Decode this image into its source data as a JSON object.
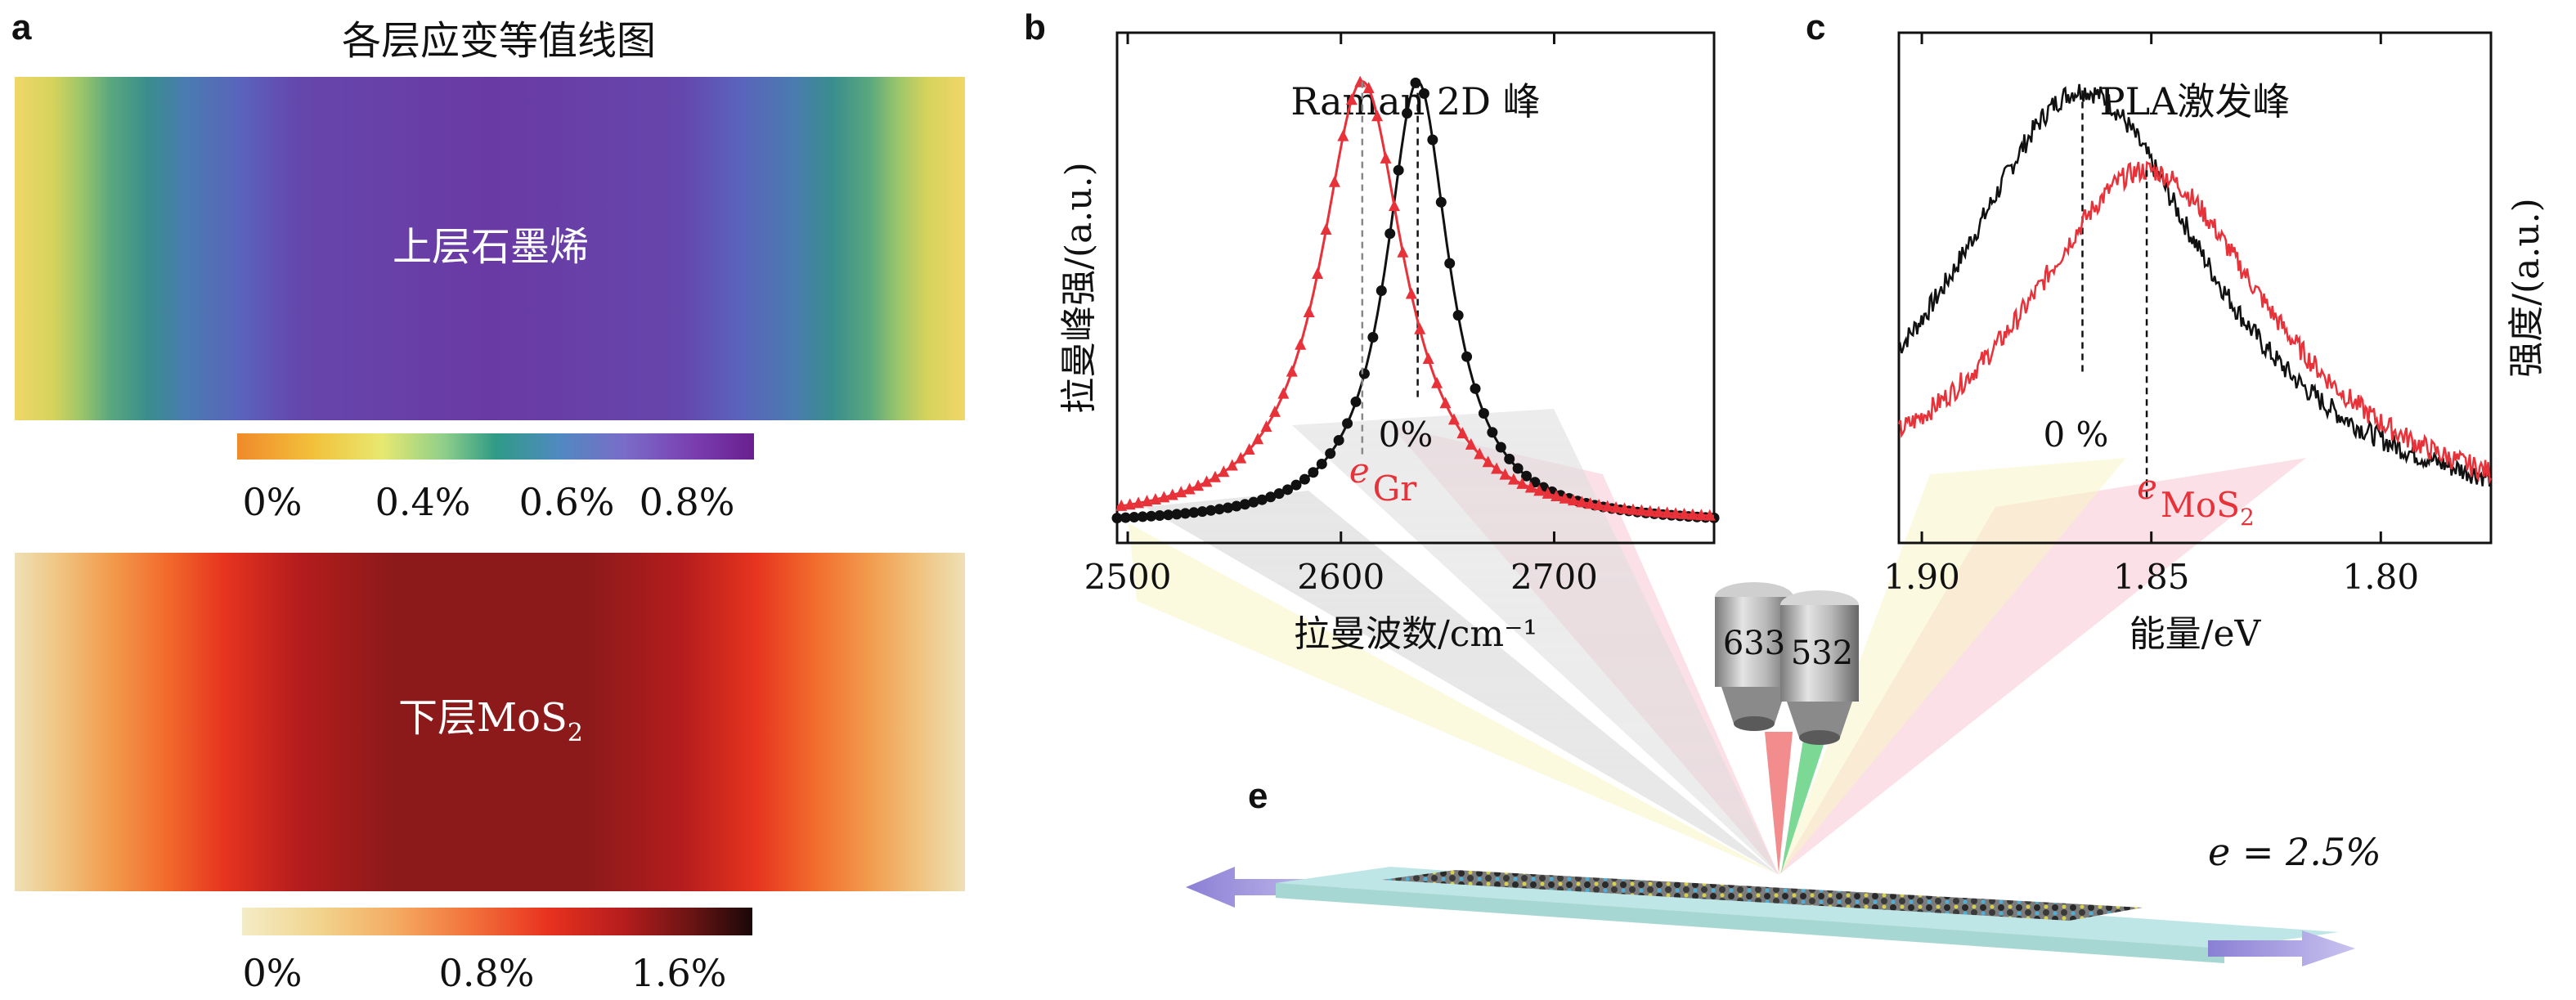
{
  "panel_a": {
    "letter": "a",
    "title": "各层应变等值线图",
    "upper_label": "上层石墨烯",
    "lower_label_main": "下层MoS",
    "lower_label_sub": "2",
    "upper_colorbar": {
      "ticks": [
        "0%",
        "0.4%",
        "0.6%",
        "0.8%"
      ]
    },
    "lower_colorbar": {
      "ticks": [
        "0%",
        "0.8%",
        "1.6%"
      ]
    },
    "colors": {
      "upper_stops": [
        "#e8d45c",
        "#b5d35a",
        "#6fb87a",
        "#2f8f8a",
        "#3d7fa6",
        "#4f6bb8",
        "#5c55b8",
        "#6441a8",
        "#6b36a0"
      ],
      "lower_stops": [
        "#efe3b8",
        "#f0c07a",
        "#f29a4d",
        "#f26b2d",
        "#e8321f",
        "#c41e1e",
        "#9b1c1c",
        "#7a1616"
      ]
    }
  },
  "panel_b": {
    "letter": "b"
  },
  "panel_c": {
    "letter": "c"
  },
  "panel_e": {
    "letter": "e",
    "strain_label": "e = 2.5%",
    "objective_left": "633",
    "objective_right": "532"
  },
  "chart_data": [
    {
      "type": "line",
      "title": "Raman 2D 峰",
      "xlabel": "拉曼波数/cm⁻¹",
      "ylabel": "拉曼峰强/(a.u.)",
      "xlim": [
        2495,
        2775
      ],
      "ylim": [
        0,
        1.15
      ],
      "xticks": [
        2500,
        2600,
        2700
      ],
      "xtick_labels": [
        "2500",
        "2600",
        "2700"
      ],
      "series": [
        {
          "name": "0%",
          "color": "#111111",
          "marker": "circle",
          "center": 2636,
          "hwhm": 18,
          "baseline": 0.04,
          "amplitude": 1.0
        },
        {
          "name": "e Gr",
          "color": "#e8323a",
          "marker": "triangle",
          "center": 2610,
          "hwhm": 24,
          "baseline": 0.04,
          "amplitude": 1.0
        }
      ],
      "annotations": [
        {
          "text": "0%",
          "x": 2636,
          "color": "#111111"
        },
        {
          "text": "e",
          "sub": "Gr",
          "x": 2610,
          "color": "#e8323a"
        }
      ]
    },
    {
      "type": "line",
      "title": "PLA激发峰",
      "xlabel": "能量/eV",
      "ylabel": "强度/(a.u.)",
      "xlim": [
        1.905,
        1.776
      ],
      "ylim": [
        0,
        1.15
      ],
      "xticks": [
        1.9,
        1.85,
        1.8
      ],
      "xtick_labels": [
        "1.90",
        "1.85",
        "1.80"
      ],
      "series": [
        {
          "name": "0 %",
          "color": "#111111",
          "center": 1.865,
          "hwhm": 0.034,
          "baseline": 0.02,
          "amplitude": 1.0
        },
        {
          "name": "e MoS2",
          "color": "#e8323a",
          "center": 1.851,
          "hwhm": 0.034,
          "baseline": 0.02,
          "amplitude": 0.82
        }
      ],
      "annotations": [
        {
          "text": "0 %",
          "x": 1.865,
          "color": "#111111"
        },
        {
          "text": "e",
          "sub": "MoS",
          "subsub": "2",
          "x": 1.851,
          "color": "#e8323a"
        }
      ]
    }
  ]
}
